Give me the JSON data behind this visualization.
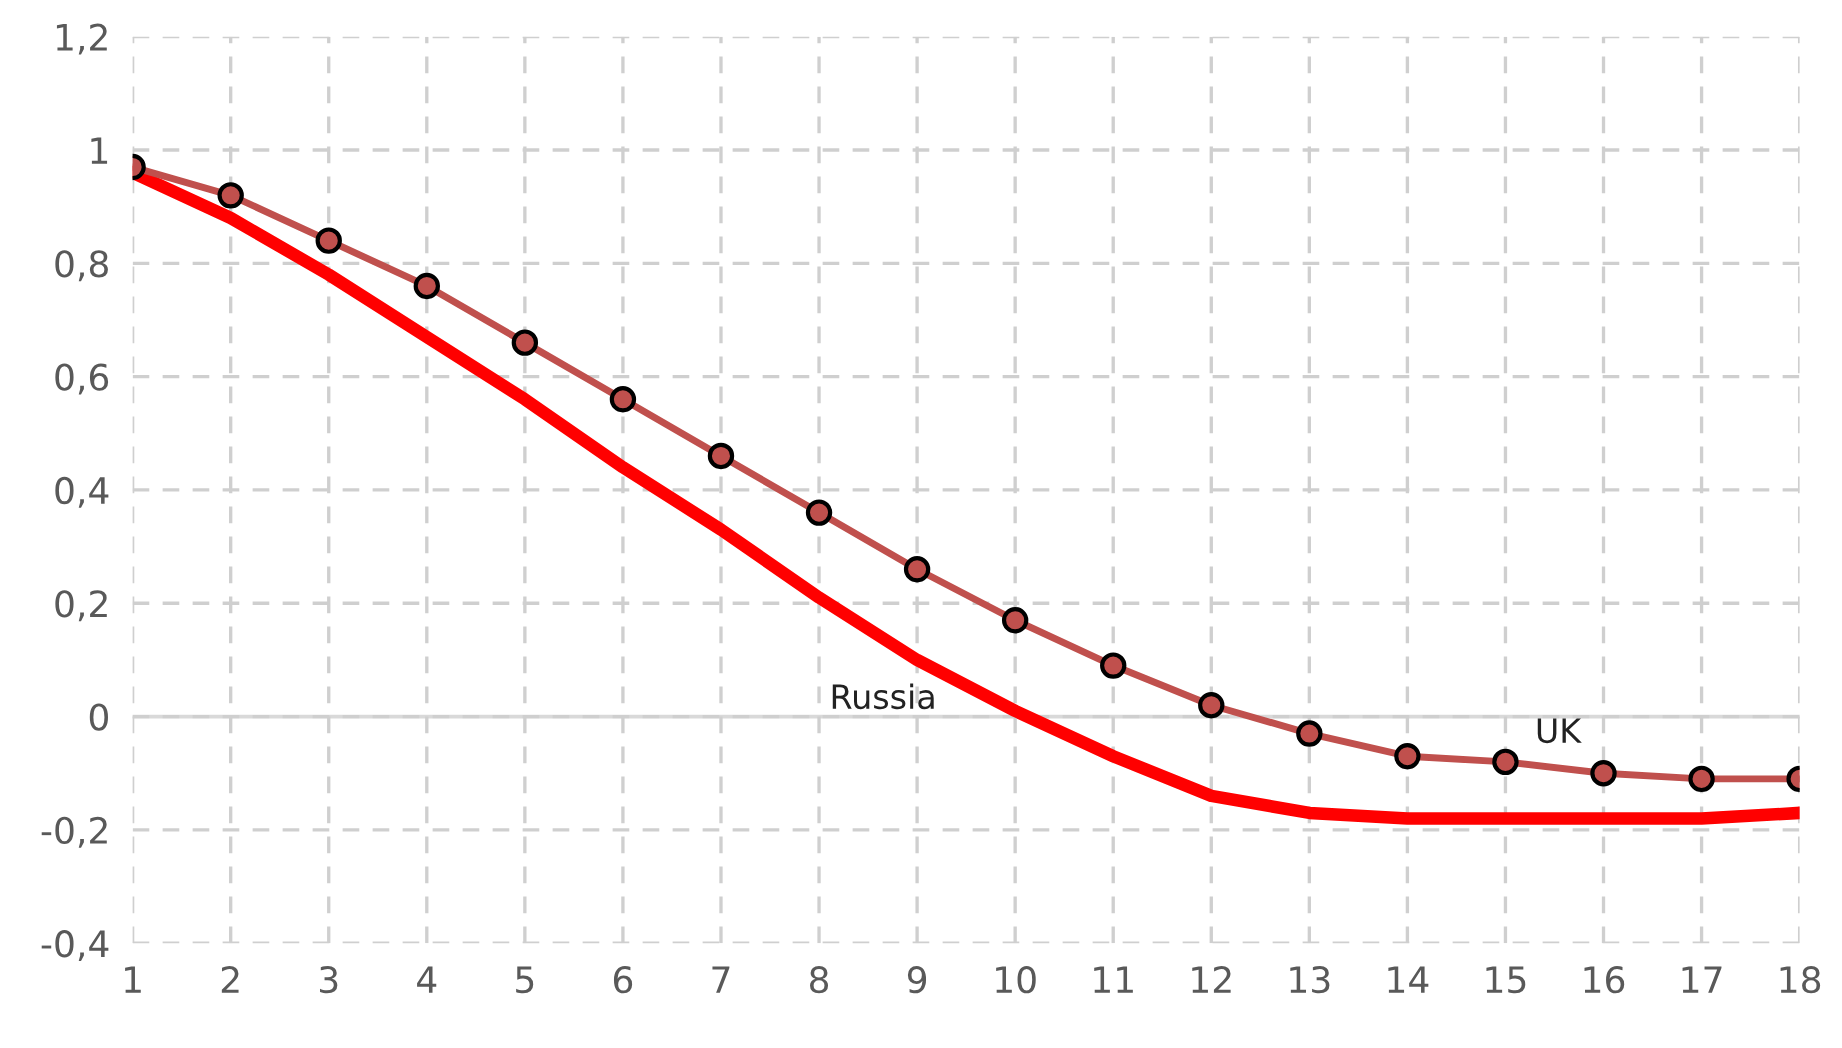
{
  "chart_data": {
    "type": "line",
    "x": [
      1,
      2,
      3,
      4,
      5,
      6,
      7,
      8,
      9,
      10,
      11,
      12,
      13,
      14,
      15,
      16,
      17,
      18
    ],
    "series": [
      {
        "name": "UK",
        "color": "#c0504d",
        "marker": "circle",
        "values": [
          0.97,
          0.92,
          0.84,
          0.76,
          0.66,
          0.56,
          0.46,
          0.36,
          0.26,
          0.17,
          0.09,
          0.02,
          -0.03,
          -0.07,
          -0.08,
          -0.1,
          -0.11,
          -0.11
        ]
      },
      {
        "name": "Russia",
        "color": "#ff0000",
        "marker": "none",
        "values": [
          0.96,
          0.88,
          0.78,
          0.67,
          0.56,
          0.44,
          0.33,
          0.21,
          0.1,
          0.01,
          -0.07,
          -0.14,
          -0.17,
          -0.18,
          -0.18,
          -0.18,
          -0.18,
          -0.17
        ]
      }
    ],
    "xlim": [
      1,
      18
    ],
    "xticks": [
      1,
      2,
      3,
      4,
      5,
      6,
      7,
      8,
      9,
      10,
      11,
      12,
      13,
      14,
      15,
      16,
      17,
      18
    ],
    "ylim": [
      -0.4,
      1.2
    ],
    "yticks": [
      {
        "value": -0.4,
        "label": "-0,4"
      },
      {
        "value": -0.2,
        "label": "-0,2"
      },
      0,
      {
        "value": 0.2,
        "label": "0,2"
      },
      {
        "value": 0.4,
        "label": "0,4"
      },
      {
        "value": 0.6,
        "label": "0,6"
      },
      {
        "value": 0.8,
        "label": "0,8"
      },
      1,
      {
        "value": 1.2,
        "label": "1,2"
      }
    ],
    "ref_lines": [
      {
        "axis": "y",
        "value": 0,
        "color": "#d9d9d9",
        "line_style": "solid"
      }
    ],
    "grid": true,
    "legend": false,
    "line_style": "solid"
  }
}
